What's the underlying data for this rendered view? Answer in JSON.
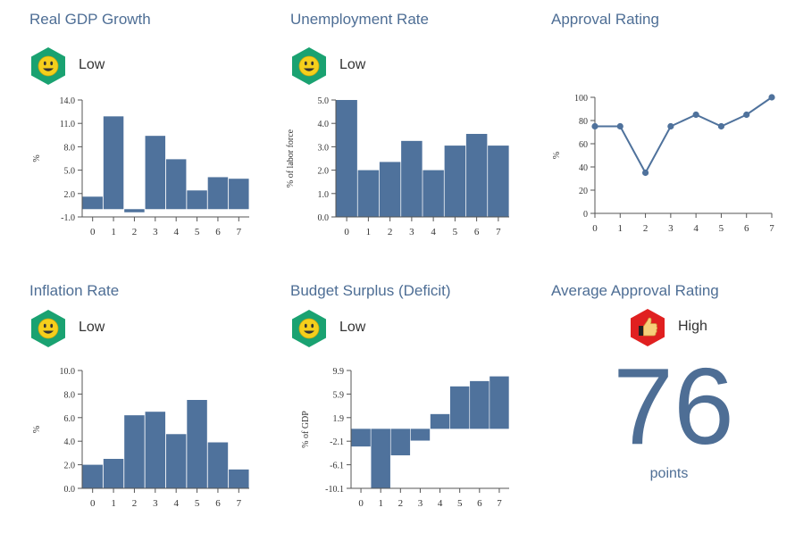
{
  "colors": {
    "title": "#4e6e95",
    "bar": "#4f729c",
    "line": "#4f729c",
    "badge_green": "#1aa271",
    "badge_red": "#e02020",
    "face_yellow": "#f5cf1c"
  },
  "panels": {
    "gdp": {
      "title": "Real GDP Growth",
      "status": "Low",
      "status_icon": "smiley-face-icon"
    },
    "unemployment": {
      "title": "Unemployment Rate",
      "status": "Low",
      "status_icon": "smiley-face-icon"
    },
    "approval": {
      "title": "Approval Rating"
    },
    "inflation": {
      "title": "Inflation Rate",
      "status": "Low",
      "status_icon": "smiley-face-icon"
    },
    "budget": {
      "title": "Budget Surplus (Deficit)",
      "status": "Low",
      "status_icon": "smiley-face-icon"
    },
    "avg_approval": {
      "title": "Average Approval Rating",
      "status": "High",
      "status_icon": "thumbs-up-icon",
      "value": "76",
      "unit": "points"
    }
  },
  "chart_data": [
    {
      "id": "gdp",
      "type": "bar",
      "title": "Real GDP Growth",
      "categories": [
        "0",
        "1",
        "2",
        "3",
        "4",
        "5",
        "6",
        "7"
      ],
      "values": [
        1.6,
        11.9,
        -0.4,
        9.4,
        6.4,
        2.4,
        4.1,
        3.9
      ],
      "ylabel": "%",
      "ylim": [
        -1.0,
        14.0
      ],
      "yticks": [
        "-1.0",
        "2.0",
        "5.0",
        "8.0",
        "11.0",
        "14.0"
      ]
    },
    {
      "id": "unemployment",
      "type": "bar",
      "title": "Unemployment Rate",
      "categories": [
        "0",
        "1",
        "2",
        "3",
        "4",
        "5",
        "6",
        "7"
      ],
      "values": [
        5.0,
        2.0,
        2.35,
        3.25,
        2.0,
        3.05,
        3.55,
        3.05
      ],
      "ylabel": "% of labor force",
      "ylim": [
        0.0,
        5.0
      ],
      "yticks": [
        "0.0",
        "1.0",
        "2.0",
        "3.0",
        "4.0",
        "5.0"
      ]
    },
    {
      "id": "approval",
      "type": "line",
      "title": "Approval Rating",
      "x": [
        0,
        1,
        2,
        3,
        4,
        5,
        6,
        7
      ],
      "categories": [
        "0",
        "1",
        "2",
        "3",
        "4",
        "5",
        "6",
        "7"
      ],
      "values": [
        75,
        75,
        35,
        75,
        85,
        75,
        85,
        100
      ],
      "ylabel": "%",
      "ylim": [
        0,
        100
      ],
      "yticks": [
        "0",
        "20",
        "40",
        "60",
        "80",
        "100"
      ]
    },
    {
      "id": "inflation",
      "type": "bar",
      "title": "Inflation Rate",
      "categories": [
        "0",
        "1",
        "2",
        "3",
        "4",
        "5",
        "6",
        "7"
      ],
      "values": [
        2.0,
        2.5,
        6.2,
        6.5,
        4.6,
        7.5,
        3.9,
        1.6
      ],
      "ylabel": "%",
      "ylim": [
        0.0,
        10.0
      ],
      "yticks": [
        "0.0",
        "2.0",
        "4.0",
        "6.0",
        "8.0",
        "10.0"
      ]
    },
    {
      "id": "budget",
      "type": "bar",
      "title": "Budget Surplus (Deficit)",
      "categories": [
        "0",
        "1",
        "2",
        "3",
        "4",
        "5",
        "6",
        "7"
      ],
      "values": [
        -3.0,
        -10.1,
        -4.5,
        -2.0,
        2.5,
        7.2,
        8.1,
        8.9
      ],
      "ylabel": "% of GDP",
      "ylim": [
        -10.1,
        9.9
      ],
      "yticks": [
        "-10.1",
        "-6.1",
        "-2.1",
        "1.9",
        "5.9",
        "9.9"
      ]
    }
  ]
}
